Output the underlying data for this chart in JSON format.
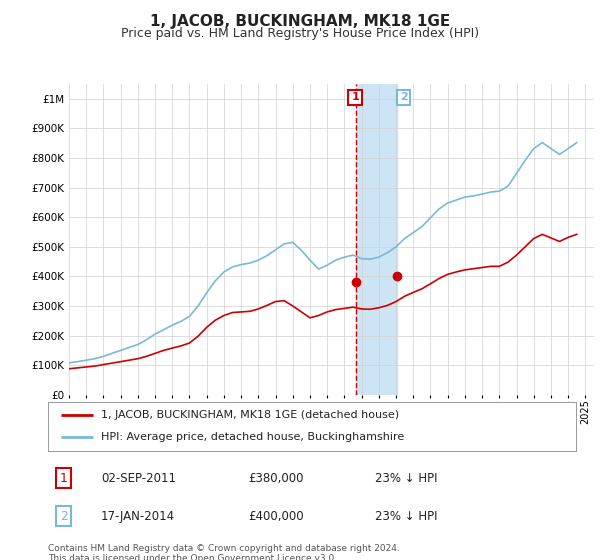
{
  "title": "1, JACOB, BUCKINGHAM, MK18 1GE",
  "subtitle": "Price paid vs. HM Land Registry's House Price Index (HPI)",
  "title_fontsize": 11,
  "subtitle_fontsize": 9,
  "bg_color": "#ffffff",
  "grid_color": "#d0d0d0",
  "hpi_color": "#7ab8d9",
  "price_color": "#cc0000",
  "highlight_fill": "#cce4f4",
  "dashed_color": "#cc0000",
  "ylim": [
    0,
    1050000
  ],
  "yticks": [
    0,
    100000,
    200000,
    300000,
    400000,
    500000,
    600000,
    700000,
    800000,
    900000,
    1000000
  ],
  "legend_label_price": "1, JACOB, BUCKINGHAM, MK18 1GE (detached house)",
  "legend_label_hpi": "HPI: Average price, detached house, Buckinghamshire",
  "sale1_date": "02-SEP-2011",
  "sale1_price": 380000,
  "sale1_pct": "23% ↓ HPI",
  "sale1_year": 2011.67,
  "sale2_date": "17-JAN-2014",
  "sale2_price": 400000,
  "sale2_pct": "23% ↓ HPI",
  "sale2_year": 2014.04,
  "footnote": "Contains HM Land Registry data © Crown copyright and database right 2024.\nThis data is licensed under the Open Government Licence v3.0.",
  "hpi_years": [
    1995,
    1995.5,
    1996,
    1996.5,
    1997,
    1997.5,
    1998,
    1998.5,
    1999,
    1999.5,
    2000,
    2000.5,
    2001,
    2001.5,
    2002,
    2002.5,
    2003,
    2003.5,
    2004,
    2004.5,
    2005,
    2005.5,
    2006,
    2006.5,
    2007,
    2007.5,
    2008,
    2008.5,
    2009,
    2009.5,
    2010,
    2010.5,
    2011,
    2011.5,
    2012,
    2012.5,
    2013,
    2013.5,
    2014,
    2014.5,
    2015,
    2015.5,
    2016,
    2016.5,
    2017,
    2017.5,
    2018,
    2018.5,
    2019,
    2019.5,
    2020,
    2020.5,
    2021,
    2021.5,
    2022,
    2022.5,
    2023,
    2023.5,
    2024,
    2024.5
  ],
  "hpi_vals": [
    108000,
    112000,
    117000,
    122000,
    130000,
    140000,
    150000,
    160000,
    170000,
    186000,
    205000,
    220000,
    235000,
    248000,
    265000,
    300000,
    345000,
    385000,
    415000,
    432000,
    440000,
    445000,
    455000,
    470000,
    490000,
    510000,
    515000,
    488000,
    455000,
    425000,
    438000,
    455000,
    465000,
    472000,
    460000,
    458000,
    465000,
    480000,
    500000,
    528000,
    548000,
    568000,
    598000,
    628000,
    648000,
    658000,
    668000,
    672000,
    678000,
    685000,
    688000,
    705000,
    748000,
    792000,
    832000,
    852000,
    832000,
    812000,
    832000,
    852000
  ],
  "price_years": [
    1995,
    1995.5,
    1996,
    1996.5,
    1997,
    1997.5,
    1998,
    1998.5,
    1999,
    1999.5,
    2000,
    2000.5,
    2001,
    2001.5,
    2002,
    2002.5,
    2003,
    2003.5,
    2004,
    2004.5,
    2005,
    2005.5,
    2006,
    2006.5,
    2007,
    2007.5,
    2008,
    2008.5,
    2009,
    2009.5,
    2010,
    2010.5,
    2011,
    2011.5,
    2012,
    2012.5,
    2013,
    2013.5,
    2014,
    2014.5,
    2015,
    2015.5,
    2016,
    2016.5,
    2017,
    2017.5,
    2018,
    2018.5,
    2019,
    2019.5,
    2020,
    2020.5,
    2021,
    2021.5,
    2022,
    2022.5,
    2023,
    2023.5,
    2024,
    2024.5
  ],
  "price_vals": [
    88000,
    91000,
    94000,
    97000,
    102000,
    107000,
    112000,
    117000,
    122000,
    130000,
    140000,
    150000,
    158000,
    165000,
    175000,
    198000,
    228000,
    252000,
    268000,
    278000,
    280000,
    282000,
    290000,
    302000,
    315000,
    318000,
    300000,
    280000,
    260000,
    268000,
    280000,
    288000,
    292000,
    296000,
    290000,
    289000,
    294000,
    302000,
    315000,
    333000,
    346000,
    358000,
    375000,
    393000,
    407000,
    415000,
    422000,
    426000,
    430000,
    434000,
    434000,
    448000,
    472000,
    500000,
    528000,
    542000,
    530000,
    518000,
    532000,
    542000
  ]
}
